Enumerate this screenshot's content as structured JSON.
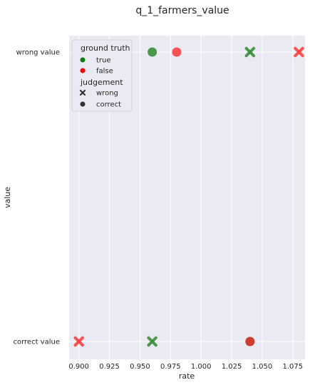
{
  "chart_data": {
    "type": "scatter",
    "title": "q_1_farmers_value",
    "xlabel": "rate",
    "ylabel": "value",
    "xlim": [
      0.892,
      1.085
    ],
    "x_ticks": [
      "0.900",
      "0.925",
      "0.950",
      "0.975",
      "1.000",
      "1.025",
      "1.050",
      "1.075"
    ],
    "x_tick_values": [
      0.9,
      0.925,
      0.95,
      0.975,
      1.0,
      1.025,
      1.05,
      1.075
    ],
    "categories": [
      "wrong value",
      "correct value"
    ],
    "grid": true,
    "legend_position": "top-left",
    "colors": {
      "true": "#3a8f3a",
      "false": "#ff4040",
      "overlap": "#cc3322",
      "background": "#eaeaf2"
    },
    "legend": {
      "hue_title": "ground truth",
      "hue_items": [
        {
          "label": "true",
          "color": "#0f7a0f"
        },
        {
          "label": "false",
          "color": "#ff0000"
        }
      ],
      "style_title": "judgement",
      "style_items": [
        {
          "label": "wrong",
          "marker": "x"
        },
        {
          "label": "correct",
          "marker": "o"
        }
      ]
    },
    "points": [
      {
        "x": 0.96,
        "y": "wrong value",
        "ground_truth": "true",
        "judgement": "correct"
      },
      {
        "x": 0.98,
        "y": "wrong value",
        "ground_truth": "false",
        "judgement": "correct"
      },
      {
        "x": 1.04,
        "y": "wrong value",
        "ground_truth": "true",
        "judgement": "wrong"
      },
      {
        "x": 1.08,
        "y": "wrong value",
        "ground_truth": "false",
        "judgement": "wrong"
      },
      {
        "x": 0.9,
        "y": "correct value",
        "ground_truth": "false",
        "judgement": "wrong"
      },
      {
        "x": 0.96,
        "y": "correct value",
        "ground_truth": "true",
        "judgement": "wrong"
      },
      {
        "x": 1.04,
        "y": "correct value",
        "ground_truth": "true",
        "judgement": "correct"
      },
      {
        "x": 1.04,
        "y": "correct value",
        "ground_truth": "false",
        "judgement": "correct"
      }
    ]
  }
}
